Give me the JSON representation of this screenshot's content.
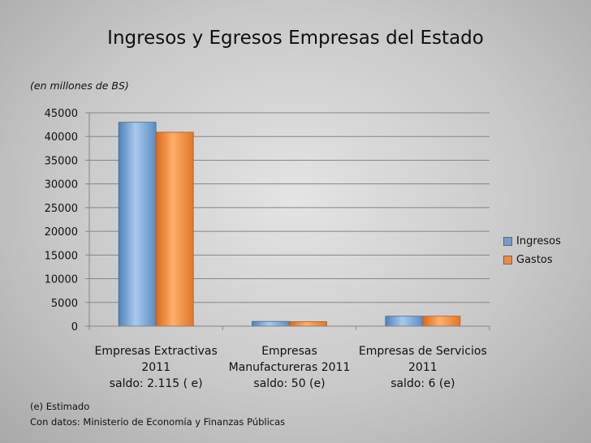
{
  "chart_data": {
    "type": "bar",
    "title": "Ingresos y Egresos Empresas del Estado",
    "subtitle": "(en millones de BS)",
    "categories": [
      [
        "Empresas Extractivas",
        "2011",
        "saldo: 2.115 ( e)"
      ],
      [
        "Empresas",
        "Manufactureras 2011",
        "saldo: 50 (e)"
      ],
      [
        "Empresas de Servicios",
        "2011",
        "saldo: 6 (e)"
      ]
    ],
    "series": [
      {
        "name": "Ingresos",
        "values": [
          43000,
          1000,
          2100
        ],
        "color": "#6f9fd0"
      },
      {
        "name": "Gastos",
        "values": [
          40900,
          950,
          2100
        ],
        "color": "#f28a3a"
      }
    ],
    "ylim": [
      0,
      45000
    ],
    "yticks": [
      "45000",
      "40000",
      "35000",
      "30000",
      "25000",
      "20000",
      "15000",
      "10000",
      "5000",
      "0"
    ],
    "grid": true,
    "legend_position": "right"
  },
  "notes": {
    "estimado": "(e) Estimado",
    "fuente": "Con datos: Ministerio de Economía y Finanzas Públicas"
  }
}
